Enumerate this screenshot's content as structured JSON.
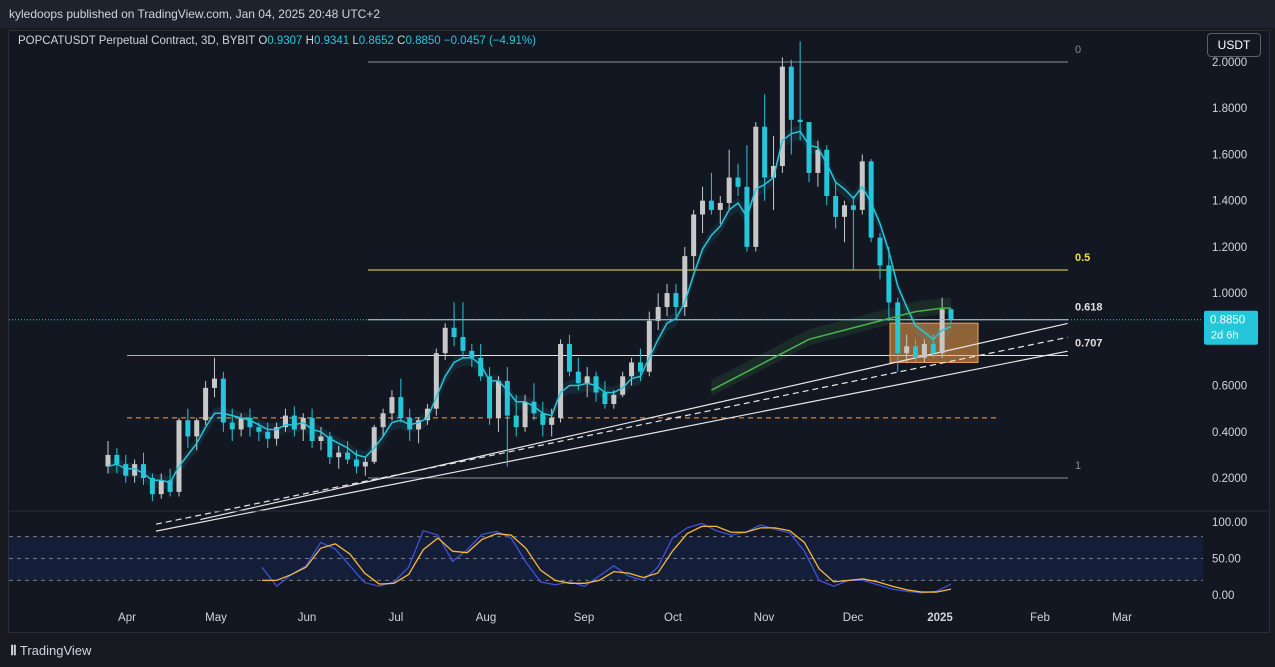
{
  "header": {
    "published": "kyledoops published on TradingView.com, Jan 04, 2025 20:48 UTC+2"
  },
  "legend": {
    "symbol": "POPCATUSDT Perpetual Contract, 3D, BYBIT",
    "o_label": "O",
    "o": "0.9307",
    "h_label": "H",
    "h": "0.9341",
    "l_label": "L",
    "l": "0.8652",
    "c_label": "C",
    "c": "0.8850",
    "change": "−0.0457 (−4.91%)"
  },
  "currency_button": "USDT",
  "footer": {
    "brand": "TradingView"
  },
  "colors": {
    "bg": "#131722",
    "candle_up": "#c8c8c8",
    "candle_down": "#26c6da",
    "ema_fast": "#26c6da",
    "ema_slow": "#4caf50",
    "fib": "#e0e0e0",
    "fib_half": "#f0e04a",
    "orange": "#f7a04a",
    "stoch_k": "#3f51d8",
    "stoch_d": "#f6b93b"
  },
  "chart_data": [
    {
      "type": "candlestick",
      "title": "",
      "x": [
        "Apr",
        "May",
        "Jun",
        "Jul",
        "Aug",
        "Sep",
        "Oct",
        "Nov",
        "Dec",
        "2025",
        "Feb",
        "Mar"
      ],
      "y_ticks": [
        "2.0000",
        "1.8000",
        "1.6000",
        "1.4000",
        "1.2000",
        "1.0000",
        "0.6000",
        "0.4000",
        "0.2000"
      ],
      "ylim": [
        0.0,
        2.05
      ],
      "last_price": "0.8850",
      "countdown": "2d 6h",
      "fib_levels": [
        {
          "label": "0",
          "price": 2.0
        },
        {
          "label": "0.5",
          "price": 1.1
        },
        {
          "label": "0.618",
          "price": 0.885
        },
        {
          "label": "0.707",
          "price": 0.73
        },
        {
          "label": "1",
          "price": 0.2
        }
      ],
      "candles": [
        {
          "o": 0.25,
          "h": 0.36,
          "l": 0.22,
          "c": 0.3
        },
        {
          "o": 0.3,
          "h": 0.33,
          "l": 0.22,
          "c": 0.26
        },
        {
          "o": 0.26,
          "h": 0.3,
          "l": 0.18,
          "c": 0.21
        },
        {
          "o": 0.21,
          "h": 0.28,
          "l": 0.18,
          "c": 0.26
        },
        {
          "o": 0.26,
          "h": 0.31,
          "l": 0.17,
          "c": 0.2
        },
        {
          "o": 0.2,
          "h": 0.22,
          "l": 0.1,
          "c": 0.13
        },
        {
          "o": 0.13,
          "h": 0.22,
          "l": 0.11,
          "c": 0.19
        },
        {
          "o": 0.19,
          "h": 0.24,
          "l": 0.12,
          "c": 0.14
        },
        {
          "o": 0.14,
          "h": 0.46,
          "l": 0.12,
          "c": 0.45
        },
        {
          "o": 0.45,
          "h": 0.5,
          "l": 0.33,
          "c": 0.38
        },
        {
          "o": 0.38,
          "h": 0.46,
          "l": 0.32,
          "c": 0.45
        },
        {
          "o": 0.45,
          "h": 0.62,
          "l": 0.43,
          "c": 0.59
        },
        {
          "o": 0.59,
          "h": 0.72,
          "l": 0.55,
          "c": 0.63
        },
        {
          "o": 0.63,
          "h": 0.66,
          "l": 0.4,
          "c": 0.44
        },
        {
          "o": 0.44,
          "h": 0.5,
          "l": 0.36,
          "c": 0.41
        },
        {
          "o": 0.41,
          "h": 0.48,
          "l": 0.38,
          "c": 0.46
        },
        {
          "o": 0.46,
          "h": 0.5,
          "l": 0.38,
          "c": 0.42
        },
        {
          "o": 0.42,
          "h": 0.44,
          "l": 0.36,
          "c": 0.4
        },
        {
          "o": 0.4,
          "h": 0.44,
          "l": 0.33,
          "c": 0.37
        },
        {
          "o": 0.37,
          "h": 0.44,
          "l": 0.34,
          "c": 0.42
        },
        {
          "o": 0.42,
          "h": 0.5,
          "l": 0.4,
          "c": 0.47
        },
        {
          "o": 0.47,
          "h": 0.51,
          "l": 0.38,
          "c": 0.41
        },
        {
          "o": 0.41,
          "h": 0.48,
          "l": 0.36,
          "c": 0.46
        },
        {
          "o": 0.46,
          "h": 0.5,
          "l": 0.33,
          "c": 0.36
        },
        {
          "o": 0.36,
          "h": 0.42,
          "l": 0.32,
          "c": 0.38
        },
        {
          "o": 0.38,
          "h": 0.4,
          "l": 0.26,
          "c": 0.29
        },
        {
          "o": 0.29,
          "h": 0.34,
          "l": 0.24,
          "c": 0.31
        },
        {
          "o": 0.31,
          "h": 0.36,
          "l": 0.26,
          "c": 0.28
        },
        {
          "o": 0.28,
          "h": 0.32,
          "l": 0.22,
          "c": 0.25
        },
        {
          "o": 0.25,
          "h": 0.29,
          "l": 0.21,
          "c": 0.27
        },
        {
          "o": 0.27,
          "h": 0.43,
          "l": 0.26,
          "c": 0.42
        },
        {
          "o": 0.42,
          "h": 0.5,
          "l": 0.38,
          "c": 0.48
        },
        {
          "o": 0.48,
          "h": 0.58,
          "l": 0.45,
          "c": 0.55
        },
        {
          "o": 0.55,
          "h": 0.63,
          "l": 0.44,
          "c": 0.46
        },
        {
          "o": 0.46,
          "h": 0.5,
          "l": 0.36,
          "c": 0.41
        },
        {
          "o": 0.41,
          "h": 0.46,
          "l": 0.35,
          "c": 0.45
        },
        {
          "o": 0.45,
          "h": 0.52,
          "l": 0.43,
          "c": 0.5
        },
        {
          "o": 0.5,
          "h": 0.76,
          "l": 0.47,
          "c": 0.74
        },
        {
          "o": 0.74,
          "h": 0.87,
          "l": 0.71,
          "c": 0.85
        },
        {
          "o": 0.85,
          "h": 0.96,
          "l": 0.77,
          "c": 0.81
        },
        {
          "o": 0.81,
          "h": 0.96,
          "l": 0.72,
          "c": 0.75
        },
        {
          "o": 0.75,
          "h": 0.78,
          "l": 0.68,
          "c": 0.72
        },
        {
          "o": 0.72,
          "h": 0.78,
          "l": 0.62,
          "c": 0.64
        },
        {
          "o": 0.64,
          "h": 0.68,
          "l": 0.43,
          "c": 0.46
        },
        {
          "o": 0.46,
          "h": 0.64,
          "l": 0.4,
          "c": 0.62
        },
        {
          "o": 0.62,
          "h": 0.68,
          "l": 0.25,
          "c": 0.47
        },
        {
          "o": 0.47,
          "h": 0.56,
          "l": 0.38,
          "c": 0.42
        },
        {
          "o": 0.42,
          "h": 0.56,
          "l": 0.4,
          "c": 0.53
        },
        {
          "o": 0.53,
          "h": 0.61,
          "l": 0.45,
          "c": 0.48
        },
        {
          "o": 0.48,
          "h": 0.53,
          "l": 0.38,
          "c": 0.43
        },
        {
          "o": 0.43,
          "h": 0.5,
          "l": 0.38,
          "c": 0.46
        },
        {
          "o": 0.46,
          "h": 0.8,
          "l": 0.44,
          "c": 0.78
        },
        {
          "o": 0.78,
          "h": 0.82,
          "l": 0.64,
          "c": 0.66
        },
        {
          "o": 0.66,
          "h": 0.72,
          "l": 0.58,
          "c": 0.61
        },
        {
          "o": 0.61,
          "h": 0.68,
          "l": 0.55,
          "c": 0.64
        },
        {
          "o": 0.64,
          "h": 0.66,
          "l": 0.53,
          "c": 0.57
        },
        {
          "o": 0.57,
          "h": 0.62,
          "l": 0.5,
          "c": 0.52
        },
        {
          "o": 0.52,
          "h": 0.58,
          "l": 0.5,
          "c": 0.56
        },
        {
          "o": 0.56,
          "h": 0.66,
          "l": 0.55,
          "c": 0.64
        },
        {
          "o": 0.64,
          "h": 0.72,
          "l": 0.6,
          "c": 0.7
        },
        {
          "o": 0.7,
          "h": 0.76,
          "l": 0.62,
          "c": 0.66
        },
        {
          "o": 0.66,
          "h": 0.92,
          "l": 0.64,
          "c": 0.88
        },
        {
          "o": 0.88,
          "h": 1.0,
          "l": 0.84,
          "c": 0.94
        },
        {
          "o": 0.94,
          "h": 1.04,
          "l": 0.9,
          "c": 1.0
        },
        {
          "o": 1.0,
          "h": 1.04,
          "l": 0.9,
          "c": 0.94
        },
        {
          "o": 0.94,
          "h": 1.2,
          "l": 0.9,
          "c": 1.16
        },
        {
          "o": 1.16,
          "h": 1.36,
          "l": 1.1,
          "c": 1.34
        },
        {
          "o": 1.34,
          "h": 1.46,
          "l": 1.26,
          "c": 1.4
        },
        {
          "o": 1.4,
          "h": 1.52,
          "l": 1.34,
          "c": 1.36
        },
        {
          "o": 1.36,
          "h": 1.42,
          "l": 1.3,
          "c": 1.39
        },
        {
          "o": 1.39,
          "h": 1.62,
          "l": 1.36,
          "c": 1.5
        },
        {
          "o": 1.5,
          "h": 1.56,
          "l": 1.42,
          "c": 1.46
        },
        {
          "o": 1.46,
          "h": 1.64,
          "l": 1.18,
          "c": 1.2
        },
        {
          "o": 1.2,
          "h": 1.74,
          "l": 1.18,
          "c": 1.72
        },
        {
          "o": 1.72,
          "h": 1.86,
          "l": 1.4,
          "c": 1.5
        },
        {
          "o": 1.5,
          "h": 1.68,
          "l": 1.36,
          "c": 1.55
        },
        {
          "o": 1.55,
          "h": 2.02,
          "l": 1.52,
          "c": 1.98
        },
        {
          "o": 1.98,
          "h": 2.01,
          "l": 1.6,
          "c": 1.75
        },
        {
          "o": 1.75,
          "h": 2.09,
          "l": 1.66,
          "c": 1.74
        },
        {
          "o": 1.74,
          "h": 1.74,
          "l": 1.48,
          "c": 1.52
        },
        {
          "o": 1.52,
          "h": 1.66,
          "l": 1.46,
          "c": 1.62
        },
        {
          "o": 1.62,
          "h": 1.64,
          "l": 1.38,
          "c": 1.42
        },
        {
          "o": 1.42,
          "h": 1.48,
          "l": 1.28,
          "c": 1.33
        },
        {
          "o": 1.33,
          "h": 1.4,
          "l": 1.22,
          "c": 1.38
        },
        {
          "o": 1.38,
          "h": 1.42,
          "l": 1.1,
          "c": 1.36
        },
        {
          "o": 1.36,
          "h": 1.6,
          "l": 1.34,
          "c": 1.57
        },
        {
          "o": 1.57,
          "h": 1.58,
          "l": 1.22,
          "c": 1.24
        },
        {
          "o": 1.24,
          "h": 1.26,
          "l": 1.06,
          "c": 1.12
        },
        {
          "o": 1.12,
          "h": 1.2,
          "l": 0.88,
          "c": 0.96
        },
        {
          "o": 0.96,
          "h": 0.98,
          "l": 0.66,
          "c": 0.74
        },
        {
          "o": 0.74,
          "h": 0.82,
          "l": 0.7,
          "c": 0.77
        },
        {
          "o": 0.77,
          "h": 0.8,
          "l": 0.7,
          "c": 0.72
        },
        {
          "o": 0.72,
          "h": 0.8,
          "l": 0.7,
          "c": 0.78
        },
        {
          "o": 0.78,
          "h": 0.82,
          "l": 0.72,
          "c": 0.74
        },
        {
          "o": 0.74,
          "h": 0.98,
          "l": 0.72,
          "c": 0.93
        },
        {
          "o": 0.93,
          "h": 0.9341,
          "l": 0.8652,
          "c": 0.885
        }
      ],
      "ema_fast": [
        0.25,
        0.26,
        0.24,
        0.24,
        0.22,
        0.19,
        0.19,
        0.18,
        0.25,
        0.3,
        0.35,
        0.42,
        0.48,
        0.48,
        0.47,
        0.46,
        0.45,
        0.43,
        0.41,
        0.41,
        0.43,
        0.43,
        0.44,
        0.41,
        0.4,
        0.37,
        0.35,
        0.33,
        0.3,
        0.29,
        0.33,
        0.38,
        0.44,
        0.45,
        0.43,
        0.44,
        0.46,
        0.55,
        0.64,
        0.7,
        0.72,
        0.72,
        0.69,
        0.62,
        0.62,
        0.58,
        0.53,
        0.53,
        0.51,
        0.48,
        0.47,
        0.57,
        0.6,
        0.6,
        0.61,
        0.6,
        0.57,
        0.57,
        0.59,
        0.63,
        0.64,
        0.72,
        0.8,
        0.87,
        0.89,
        0.96,
        1.08,
        1.19,
        1.25,
        1.29,
        1.36,
        1.39,
        1.33,
        1.45,
        1.47,
        1.5,
        1.66,
        1.69,
        1.7,
        1.64,
        1.63,
        1.56,
        1.48,
        1.45,
        1.41,
        1.46,
        1.39,
        1.3,
        1.18,
        1.03,
        0.94,
        0.86,
        0.83,
        0.8,
        0.84,
        0.855
      ],
      "ema_slow": [
        null,
        null,
        null,
        null,
        null,
        null,
        null,
        null,
        null,
        null,
        null,
        null,
        null,
        null,
        null,
        null,
        null,
        null,
        null,
        null,
        null,
        null,
        null,
        null,
        null,
        null,
        null,
        null,
        null,
        null,
        null,
        null,
        null,
        null,
        null,
        null,
        null,
        null,
        null,
        null,
        null,
        null,
        null,
        null,
        null,
        null,
        null,
        null,
        null,
        null,
        null,
        null,
        null,
        null,
        null,
        null,
        null,
        null,
        null,
        null,
        null,
        null,
        null,
        null,
        null,
        null,
        null,
        null,
        0.58,
        0.6,
        0.62,
        0.64,
        0.66,
        0.68,
        0.7,
        0.72,
        0.74,
        0.76,
        0.78,
        0.8,
        0.81,
        0.82,
        0.83,
        0.84,
        0.85,
        0.86,
        0.87,
        0.88,
        0.89,
        0.9,
        0.91,
        0.92,
        0.925,
        0.93,
        0.935,
        0.935
      ],
      "support_lines": [
        {
          "from": [
            0,
            0.1
          ],
          "to": [
            98,
            0.74
          ]
        },
        {
          "from": [
            0,
            0.13
          ],
          "to": [
            98,
            0.8
          ]
        },
        {
          "from": [
            5,
            0.15
          ],
          "to": [
            98,
            0.86
          ]
        }
      ],
      "stoch_rsi": {
        "yticks": [
          "100.00",
          "50.00",
          "0.00"
        ],
        "k": [
          38,
          12,
          28,
          40,
          72,
          63,
          40,
          17,
          12,
          18,
          38,
          88,
          82,
          46,
          62,
          83,
          87,
          78,
          45,
          18,
          14,
          18,
          12,
          26,
          40,
          26,
          20,
          38,
          78,
          92,
          98,
          88,
          82,
          86,
          96,
          90,
          85,
          60,
          20,
          12,
          20,
          20,
          14,
          8,
          5,
          3,
          5,
          15
        ],
        "d": [
          20,
          20,
          28,
          38,
          64,
          70,
          56,
          30,
          15,
          16,
          28,
          62,
          78,
          60,
          58,
          76,
          84,
          82,
          64,
          34,
          20,
          16,
          16,
          20,
          32,
          30,
          24,
          30,
          60,
          84,
          94,
          94,
          86,
          86,
          92,
          92,
          88,
          72,
          36,
          18,
          20,
          22,
          18,
          12,
          7,
          4,
          4,
          8
        ]
      }
    }
  ]
}
